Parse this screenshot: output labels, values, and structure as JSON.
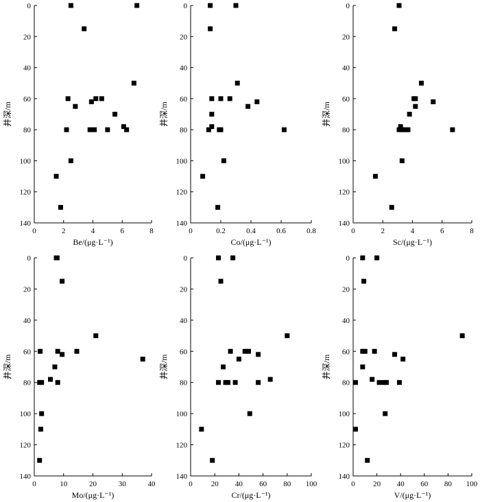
{
  "chart_data": [
    {
      "type": "scatter",
      "xlabel": "Be/(μg·L⁻¹)",
      "ylabel": "井深/m",
      "xlim": [
        0,
        8
      ],
      "ylim": [
        0,
        140
      ],
      "xticks": [
        "0",
        "2",
        "4",
        "6",
        "8"
      ],
      "yticks": [
        "0",
        "20",
        "40",
        "60",
        "80",
        "100",
        "120",
        "140"
      ],
      "y_inverted": true,
      "points": [
        {
          "x": 2.5,
          "y": 0
        },
        {
          "x": 7.0,
          "y": 0
        },
        {
          "x": 3.4,
          "y": 15
        },
        {
          "x": 6.8,
          "y": 50
        },
        {
          "x": 2.3,
          "y": 60
        },
        {
          "x": 4.2,
          "y": 60
        },
        {
          "x": 4.6,
          "y": 60
        },
        {
          "x": 3.9,
          "y": 62
        },
        {
          "x": 2.8,
          "y": 65
        },
        {
          "x": 5.5,
          "y": 70
        },
        {
          "x": 6.1,
          "y": 78
        },
        {
          "x": 2.2,
          "y": 80
        },
        {
          "x": 3.8,
          "y": 80
        },
        {
          "x": 4.1,
          "y": 80
        },
        {
          "x": 5.0,
          "y": 80
        },
        {
          "x": 6.3,
          "y": 80
        },
        {
          "x": 2.5,
          "y": 100
        },
        {
          "x": 1.5,
          "y": 110
        },
        {
          "x": 1.8,
          "y": 130
        }
      ]
    },
    {
      "type": "scatter",
      "xlabel": "Co/(μg·L⁻¹)",
      "ylabel": "井深/m",
      "xlim": [
        0,
        0.8
      ],
      "ylim": [
        0,
        140
      ],
      "xticks": [
        "0",
        "0.2",
        "0.4",
        "0.6",
        "0.8"
      ],
      "yticks": [
        "0",
        "20",
        "40",
        "60",
        "80",
        "100",
        "120",
        "140"
      ],
      "y_inverted": true,
      "points": [
        {
          "x": 0.13,
          "y": 0
        },
        {
          "x": 0.3,
          "y": 0
        },
        {
          "x": 0.13,
          "y": 15
        },
        {
          "x": 0.31,
          "y": 50
        },
        {
          "x": 0.14,
          "y": 60
        },
        {
          "x": 0.2,
          "y": 60
        },
        {
          "x": 0.26,
          "y": 60
        },
        {
          "x": 0.44,
          "y": 62
        },
        {
          "x": 0.38,
          "y": 65
        },
        {
          "x": 0.14,
          "y": 70
        },
        {
          "x": 0.14,
          "y": 78
        },
        {
          "x": 0.12,
          "y": 80
        },
        {
          "x": 0.19,
          "y": 80
        },
        {
          "x": 0.2,
          "y": 80
        },
        {
          "x": 0.62,
          "y": 80
        },
        {
          "x": 0.22,
          "y": 100
        },
        {
          "x": 0.08,
          "y": 110
        },
        {
          "x": 0.18,
          "y": 130
        }
      ]
    },
    {
      "type": "scatter",
      "xlabel": "Sc/(μg·L⁻¹)",
      "ylabel": "井深/m",
      "xlim": [
        0,
        8
      ],
      "ylim": [
        0,
        140
      ],
      "xticks": [
        "0",
        "2",
        "4",
        "6",
        "8"
      ],
      "yticks": [
        "0",
        "20",
        "40",
        "60",
        "80",
        "100",
        "120",
        "140"
      ],
      "y_inverted": true,
      "points": [
        {
          "x": 3.1,
          "y": 0
        },
        {
          "x": 2.8,
          "y": 15
        },
        {
          "x": 4.6,
          "y": 50
        },
        {
          "x": 4.1,
          "y": 60
        },
        {
          "x": 4.2,
          "y": 60
        },
        {
          "x": 5.4,
          "y": 62
        },
        {
          "x": 4.2,
          "y": 65
        },
        {
          "x": 3.8,
          "y": 70
        },
        {
          "x": 3.2,
          "y": 78
        },
        {
          "x": 3.1,
          "y": 80
        },
        {
          "x": 3.3,
          "y": 80
        },
        {
          "x": 3.5,
          "y": 80
        },
        {
          "x": 3.7,
          "y": 80
        },
        {
          "x": 6.7,
          "y": 80
        },
        {
          "x": 3.3,
          "y": 100
        },
        {
          "x": 1.5,
          "y": 110
        },
        {
          "x": 2.6,
          "y": 130
        }
      ]
    },
    {
      "type": "scatter",
      "xlabel": "Mo/(μg·L⁻¹)",
      "ylabel": "井深/m",
      "xlim": [
        0,
        40
      ],
      "ylim": [
        0,
        140
      ],
      "xticks": [
        "0",
        "10",
        "20",
        "30",
        "40"
      ],
      "yticks": [
        "0",
        "20",
        "40",
        "60",
        "80",
        "100",
        "120",
        "140"
      ],
      "y_inverted": true,
      "points": [
        {
          "x": 7.5,
          "y": 0
        },
        {
          "x": 7.8,
          "y": 0
        },
        {
          "x": 9.5,
          "y": 15
        },
        {
          "x": 21,
          "y": 50
        },
        {
          "x": 2,
          "y": 60
        },
        {
          "x": 8,
          "y": 60
        },
        {
          "x": 14.5,
          "y": 60
        },
        {
          "x": 9.5,
          "y": 62
        },
        {
          "x": 37,
          "y": 65
        },
        {
          "x": 7,
          "y": 70
        },
        {
          "x": 5.5,
          "y": 78
        },
        {
          "x": 1.8,
          "y": 80
        },
        {
          "x": 2.5,
          "y": 80
        },
        {
          "x": 8,
          "y": 80
        },
        {
          "x": 2.5,
          "y": 100
        },
        {
          "x": 2.2,
          "y": 110
        },
        {
          "x": 1.8,
          "y": 130
        }
      ]
    },
    {
      "type": "scatter",
      "xlabel": "Cr/(μg·L⁻¹)",
      "ylabel": "井深/m",
      "xlim": [
        0,
        100
      ],
      "ylim": [
        0,
        140
      ],
      "xticks": [
        "0",
        "20",
        "40",
        "60",
        "80",
        "100"
      ],
      "yticks": [
        "0",
        "20",
        "40",
        "60",
        "80",
        "100",
        "120",
        "140"
      ],
      "y_inverted": true,
      "points": [
        {
          "x": 23,
          "y": 0
        },
        {
          "x": 35,
          "y": 0
        },
        {
          "x": 25,
          "y": 15
        },
        {
          "x": 80,
          "y": 50
        },
        {
          "x": 33,
          "y": 60
        },
        {
          "x": 45,
          "y": 60
        },
        {
          "x": 48,
          "y": 60
        },
        {
          "x": 56,
          "y": 62
        },
        {
          "x": 40,
          "y": 65
        },
        {
          "x": 27,
          "y": 70
        },
        {
          "x": 66,
          "y": 78
        },
        {
          "x": 23,
          "y": 80
        },
        {
          "x": 29,
          "y": 80
        },
        {
          "x": 31,
          "y": 80
        },
        {
          "x": 37,
          "y": 80
        },
        {
          "x": 56,
          "y": 80
        },
        {
          "x": 49,
          "y": 100
        },
        {
          "x": 9,
          "y": 110
        },
        {
          "x": 18,
          "y": 130
        }
      ]
    },
    {
      "type": "scatter",
      "xlabel": "V/(μg·L⁻¹)",
      "ylabel": "井深/m",
      "xlim": [
        0,
        100
      ],
      "ylim": [
        0,
        140
      ],
      "xticks": [
        "0",
        "20",
        "40",
        "60",
        "80",
        "100"
      ],
      "yticks": [
        "0",
        "20",
        "40",
        "60",
        "80",
        "100",
        "120",
        "140"
      ],
      "y_inverted": true,
      "points": [
        {
          "x": 8,
          "y": 0
        },
        {
          "x": 20,
          "y": 0
        },
        {
          "x": 9,
          "y": 15
        },
        {
          "x": 92,
          "y": 50
        },
        {
          "x": 8,
          "y": 60
        },
        {
          "x": 10,
          "y": 60
        },
        {
          "x": 18,
          "y": 60
        },
        {
          "x": 35,
          "y": 62
        },
        {
          "x": 42,
          "y": 65
        },
        {
          "x": 8,
          "y": 70
        },
        {
          "x": 16,
          "y": 78
        },
        {
          "x": 2,
          "y": 80
        },
        {
          "x": 22,
          "y": 80
        },
        {
          "x": 26,
          "y": 80
        },
        {
          "x": 28,
          "y": 80
        },
        {
          "x": 39,
          "y": 80
        },
        {
          "x": 27,
          "y": 100
        },
        {
          "x": 2,
          "y": 110
        },
        {
          "x": 12,
          "y": 130
        }
      ]
    }
  ]
}
